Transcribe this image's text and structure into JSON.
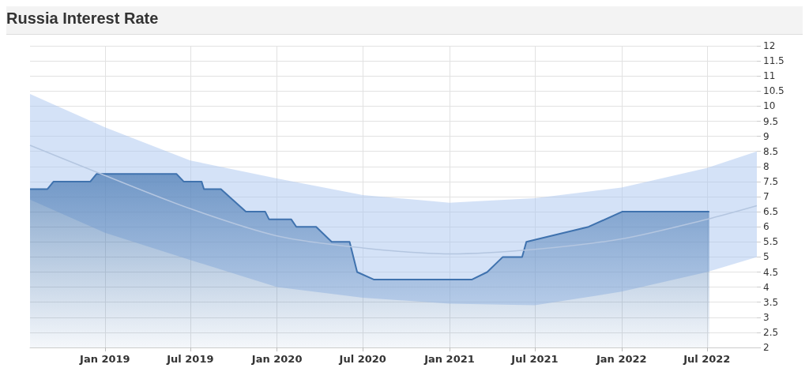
{
  "chart_data": {
    "type": "area",
    "title": "Russia Interest Rate",
    "series": [
      {
        "color": "#3f72ae",
        "x": [
          "2018-07-26",
          "2018-09-01",
          "2018-09-14",
          "2018-12-01",
          "2018-12-14",
          "2019-06-02",
          "2019-06-17",
          "2019-07-25",
          "2019-07-30",
          "2019-09-04",
          "2019-10-27",
          "2019-12-07",
          "2019-12-15",
          "2020-01-31",
          "2020-02-11",
          "2020-03-24",
          "2020-04-26",
          "2020-06-03",
          "2020-06-19",
          "2020-07-25",
          "2021-02-17",
          "2021-03-22",
          "2021-04-24",
          "2021-06-04",
          "2021-06-13",
          "2021-10-23",
          "2022-01-02",
          "2022-07-06"
        ],
        "values": [
          7.25,
          7.25,
          7.5,
          7.5,
          7.75,
          7.75,
          7.5,
          7.5,
          7.25,
          7.25,
          6.5,
          6.5,
          6.25,
          6.25,
          6.0,
          6.0,
          5.5,
          5.5,
          4.5,
          4.25,
          4.25,
          4.5,
          5.0,
          5.0,
          5.5,
          6.0,
          6.5,
          6.5
        ]
      },
      {
        "type": "line",
        "color": "#b4c6e0",
        "x": [
          "2018-07-26",
          "2019-01-01",
          "2019-07-01",
          "2020-01-01",
          "2020-07-01",
          "2021-01-01",
          "2021-07-01",
          "2022-01-01",
          "2022-07-01",
          "2022-10-15"
        ],
        "values": [
          8.7,
          7.7,
          6.6,
          5.7,
          5.3,
          5.1,
          5.25,
          5.6,
          6.25,
          6.7
        ],
        "lower": [
          6.9,
          5.8,
          4.9,
          4.0,
          3.65,
          3.45,
          3.4,
          3.85,
          4.5,
          5.0
        ],
        "upper": [
          10.4,
          9.3,
          8.2,
          7.6,
          7.05,
          6.8,
          6.95,
          7.3,
          7.95,
          8.5
        ]
      }
    ],
    "xlim": [
      "2018-07-26",
      "2022-10-15"
    ],
    "xticks": [
      {
        "value": "2019-01-01",
        "label": "Jan 2019"
      },
      {
        "value": "2019-07-01",
        "label": "Jul 2019"
      },
      {
        "value": "2020-01-01",
        "label": "Jan 2020"
      },
      {
        "value": "2020-07-01",
        "label": "Jul 2020"
      },
      {
        "value": "2021-01-01",
        "label": "Jan 2021"
      },
      {
        "value": "2021-07-01",
        "label": "Jul 2021"
      },
      {
        "value": "2022-01-01",
        "label": "Jan 2022"
      },
      {
        "value": "2022-07-01",
        "label": "Jul 2022"
      }
    ],
    "ylim": [
      2,
      12
    ],
    "yticks": [
      2,
      2.5,
      3,
      3.5,
      4,
      4.5,
      5,
      5.5,
      6,
      6.5,
      7,
      7.5,
      8,
      8.5,
      9,
      9.5,
      10,
      10.5,
      11,
      11.5,
      12
    ],
    "grid": true,
    "marker": "none",
    "line_style": "solid"
  }
}
